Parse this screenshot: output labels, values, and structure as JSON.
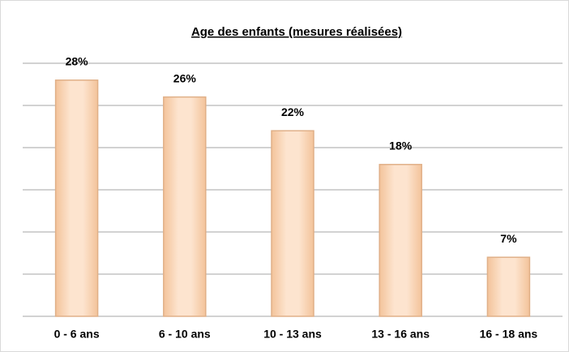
{
  "chart_data": {
    "type": "bar",
    "title": "Age des enfants (mesures réalisées)",
    "categories": [
      "0 - 6 ans",
      "6 - 10 ans",
      "10 - 13 ans",
      "13 - 16 ans",
      "16 - 18 ans"
    ],
    "values": [
      28,
      26,
      22,
      18,
      7
    ],
    "value_labels": [
      "28%",
      "26%",
      "22%",
      "18%",
      "7%"
    ],
    "color": "#fcd5b4",
    "ylim": [
      0,
      30
    ],
    "yticks": [
      0,
      5,
      10,
      15,
      20,
      25,
      30
    ],
    "grid": true
  }
}
